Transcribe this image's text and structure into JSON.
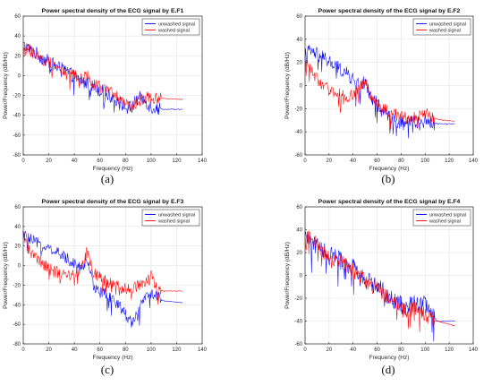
{
  "chart_data": [
    {
      "type": "line",
      "panel_label": "(a)",
      "title": "Power spectral density of the ECG signal by E.F1",
      "xlabel": "Frequency (Hz)",
      "ylabel": "Power/Frequency (dB/Hz)",
      "xlim": [
        0,
        140
      ],
      "ylim": [
        -80,
        60
      ],
      "xticks": [
        0,
        20,
        40,
        60,
        80,
        100,
        120,
        140
      ],
      "yticks": [
        -80,
        -60,
        -40,
        -20,
        0,
        20,
        40,
        60
      ],
      "grid": true,
      "legend_position": "top-right",
      "series": [
        {
          "name": "unwashed signal",
          "color": "#0000ff",
          "x": [
            0,
            3,
            8,
            15,
            25,
            35,
            45,
            50,
            55,
            65,
            75,
            80,
            85,
            90,
            95,
            100,
            105,
            110,
            125
          ],
          "y": [
            30,
            28,
            24,
            18,
            10,
            3,
            -5,
            -8,
            -11,
            -18,
            -26,
            -33,
            -32,
            -22,
            -25,
            -32,
            -33,
            -34,
            -34
          ],
          "noise": 7
        },
        {
          "name": "washed signal",
          "color": "#ff0000",
          "x": [
            0,
            3,
            8,
            15,
            25,
            35,
            45,
            50,
            55,
            65,
            75,
            80,
            85,
            90,
            95,
            100,
            105,
            110,
            125
          ],
          "y": [
            28,
            27,
            23,
            17,
            10,
            3,
            -3,
            0,
            -8,
            -15,
            -22,
            -27,
            -33,
            -26,
            -22,
            -23,
            -23,
            -23,
            -24
          ],
          "noise": 6
        }
      ]
    },
    {
      "type": "line",
      "panel_label": "(b)",
      "title": "Power spectral density of the ECG signal by E.F2",
      "xlabel": "Frequency (Hz)",
      "ylabel": "Power/Frequency (dB/Hz)",
      "xlim": [
        0,
        140
      ],
      "ylim": [
        -60,
        60
      ],
      "xticks": [
        0,
        20,
        40,
        60,
        80,
        100,
        120,
        140
      ],
      "yticks": [
        -60,
        -40,
        -20,
        0,
        20,
        40,
        60
      ],
      "grid": true,
      "legend_position": "top-right",
      "series": [
        {
          "name": "unwashed signal",
          "color": "#0000ff",
          "x": [
            0,
            3,
            8,
            15,
            25,
            35,
            45,
            50,
            55,
            65,
            75,
            80,
            85,
            90,
            95,
            100,
            105,
            110,
            125
          ],
          "y": [
            26,
            30,
            28,
            24,
            17,
            10,
            0,
            3,
            -10,
            -22,
            -30,
            -32,
            -32,
            -30,
            -33,
            -30,
            -32,
            -33,
            -33
          ],
          "noise": 6
        },
        {
          "name": "washed signal",
          "color": "#ff0000",
          "x": [
            0,
            3,
            8,
            15,
            25,
            35,
            45,
            50,
            55,
            65,
            75,
            80,
            85,
            90,
            95,
            100,
            105,
            110,
            125
          ],
          "y": [
            22,
            18,
            8,
            0,
            -6,
            -10,
            -4,
            5,
            -10,
            -20,
            -25,
            -27,
            -28,
            -27,
            -26,
            -24,
            -27,
            -29,
            -31
          ],
          "noise": 5
        }
      ]
    },
    {
      "type": "line",
      "panel_label": "(c)",
      "title": "Power spectral density of the ECG signal by E.F3",
      "xlabel": "Frequency (Hz)",
      "ylabel": "Power/Frequency (dB/Hz)",
      "xlim": [
        0,
        140
      ],
      "ylim": [
        -80,
        60
      ],
      "xticks": [
        0,
        20,
        40,
        60,
        80,
        100,
        120,
        140
      ],
      "yticks": [
        -80,
        -60,
        -40,
        -20,
        0,
        20,
        40,
        60
      ],
      "grid": true,
      "legend_position": "top-right",
      "series": [
        {
          "name": "unwashed signal",
          "color": "#0000ff",
          "x": [
            0,
            3,
            8,
            15,
            25,
            35,
            45,
            50,
            55,
            65,
            75,
            80,
            85,
            90,
            95,
            100,
            105,
            110,
            125
          ],
          "y": [
            32,
            28,
            25,
            20,
            14,
            7,
            -2,
            5,
            -20,
            -30,
            -40,
            -50,
            -58,
            -45,
            -35,
            -28,
            -32,
            -36,
            -38
          ],
          "noise": 6
        },
        {
          "name": "washed signal",
          "color": "#ff0000",
          "x": [
            0,
            3,
            8,
            15,
            25,
            35,
            45,
            50,
            55,
            65,
            75,
            80,
            85,
            90,
            95,
            100,
            105,
            110,
            125
          ],
          "y": [
            32,
            20,
            10,
            2,
            -6,
            -10,
            -5,
            15,
            -8,
            -16,
            -22,
            -24,
            -22,
            -21,
            -20,
            -10,
            -24,
            -26,
            -26
          ],
          "noise": 6
        }
      ]
    },
    {
      "type": "line",
      "panel_label": "(d)",
      "title": "Power spectral density of the ECG signal by E.F4",
      "xlabel": "Frequency (Hz)",
      "ylabel": "Power/Frequency (dB/Hz)",
      "xlim": [
        0,
        140
      ],
      "ylim": [
        -60,
        60
      ],
      "xticks": [
        0,
        20,
        40,
        60,
        80,
        100,
        120,
        140
      ],
      "yticks": [
        -60,
        -40,
        -20,
        0,
        20,
        40,
        60
      ],
      "grid": true,
      "legend_position": "top-right",
      "series": [
        {
          "name": "unwashed signal",
          "color": "#0000ff",
          "x": [
            0,
            3,
            8,
            15,
            25,
            35,
            45,
            50,
            55,
            65,
            75,
            80,
            85,
            90,
            95,
            100,
            105,
            110,
            125
          ],
          "y": [
            30,
            32,
            28,
            22,
            16,
            10,
            3,
            -2,
            -6,
            -14,
            -22,
            -26,
            -30,
            -22,
            -28,
            -24,
            -34,
            -40,
            -40
          ],
          "noise": 8
        },
        {
          "name": "washed signal",
          "color": "#ff0000",
          "x": [
            0,
            3,
            8,
            15,
            25,
            35,
            45,
            50,
            55,
            65,
            75,
            80,
            85,
            90,
            95,
            100,
            105,
            110,
            125
          ],
          "y": [
            30,
            33,
            28,
            21,
            14,
            8,
            0,
            -4,
            -8,
            -16,
            -24,
            -30,
            -32,
            -28,
            -30,
            -34,
            -38,
            -40,
            -44
          ],
          "noise": 7
        }
      ]
    }
  ]
}
